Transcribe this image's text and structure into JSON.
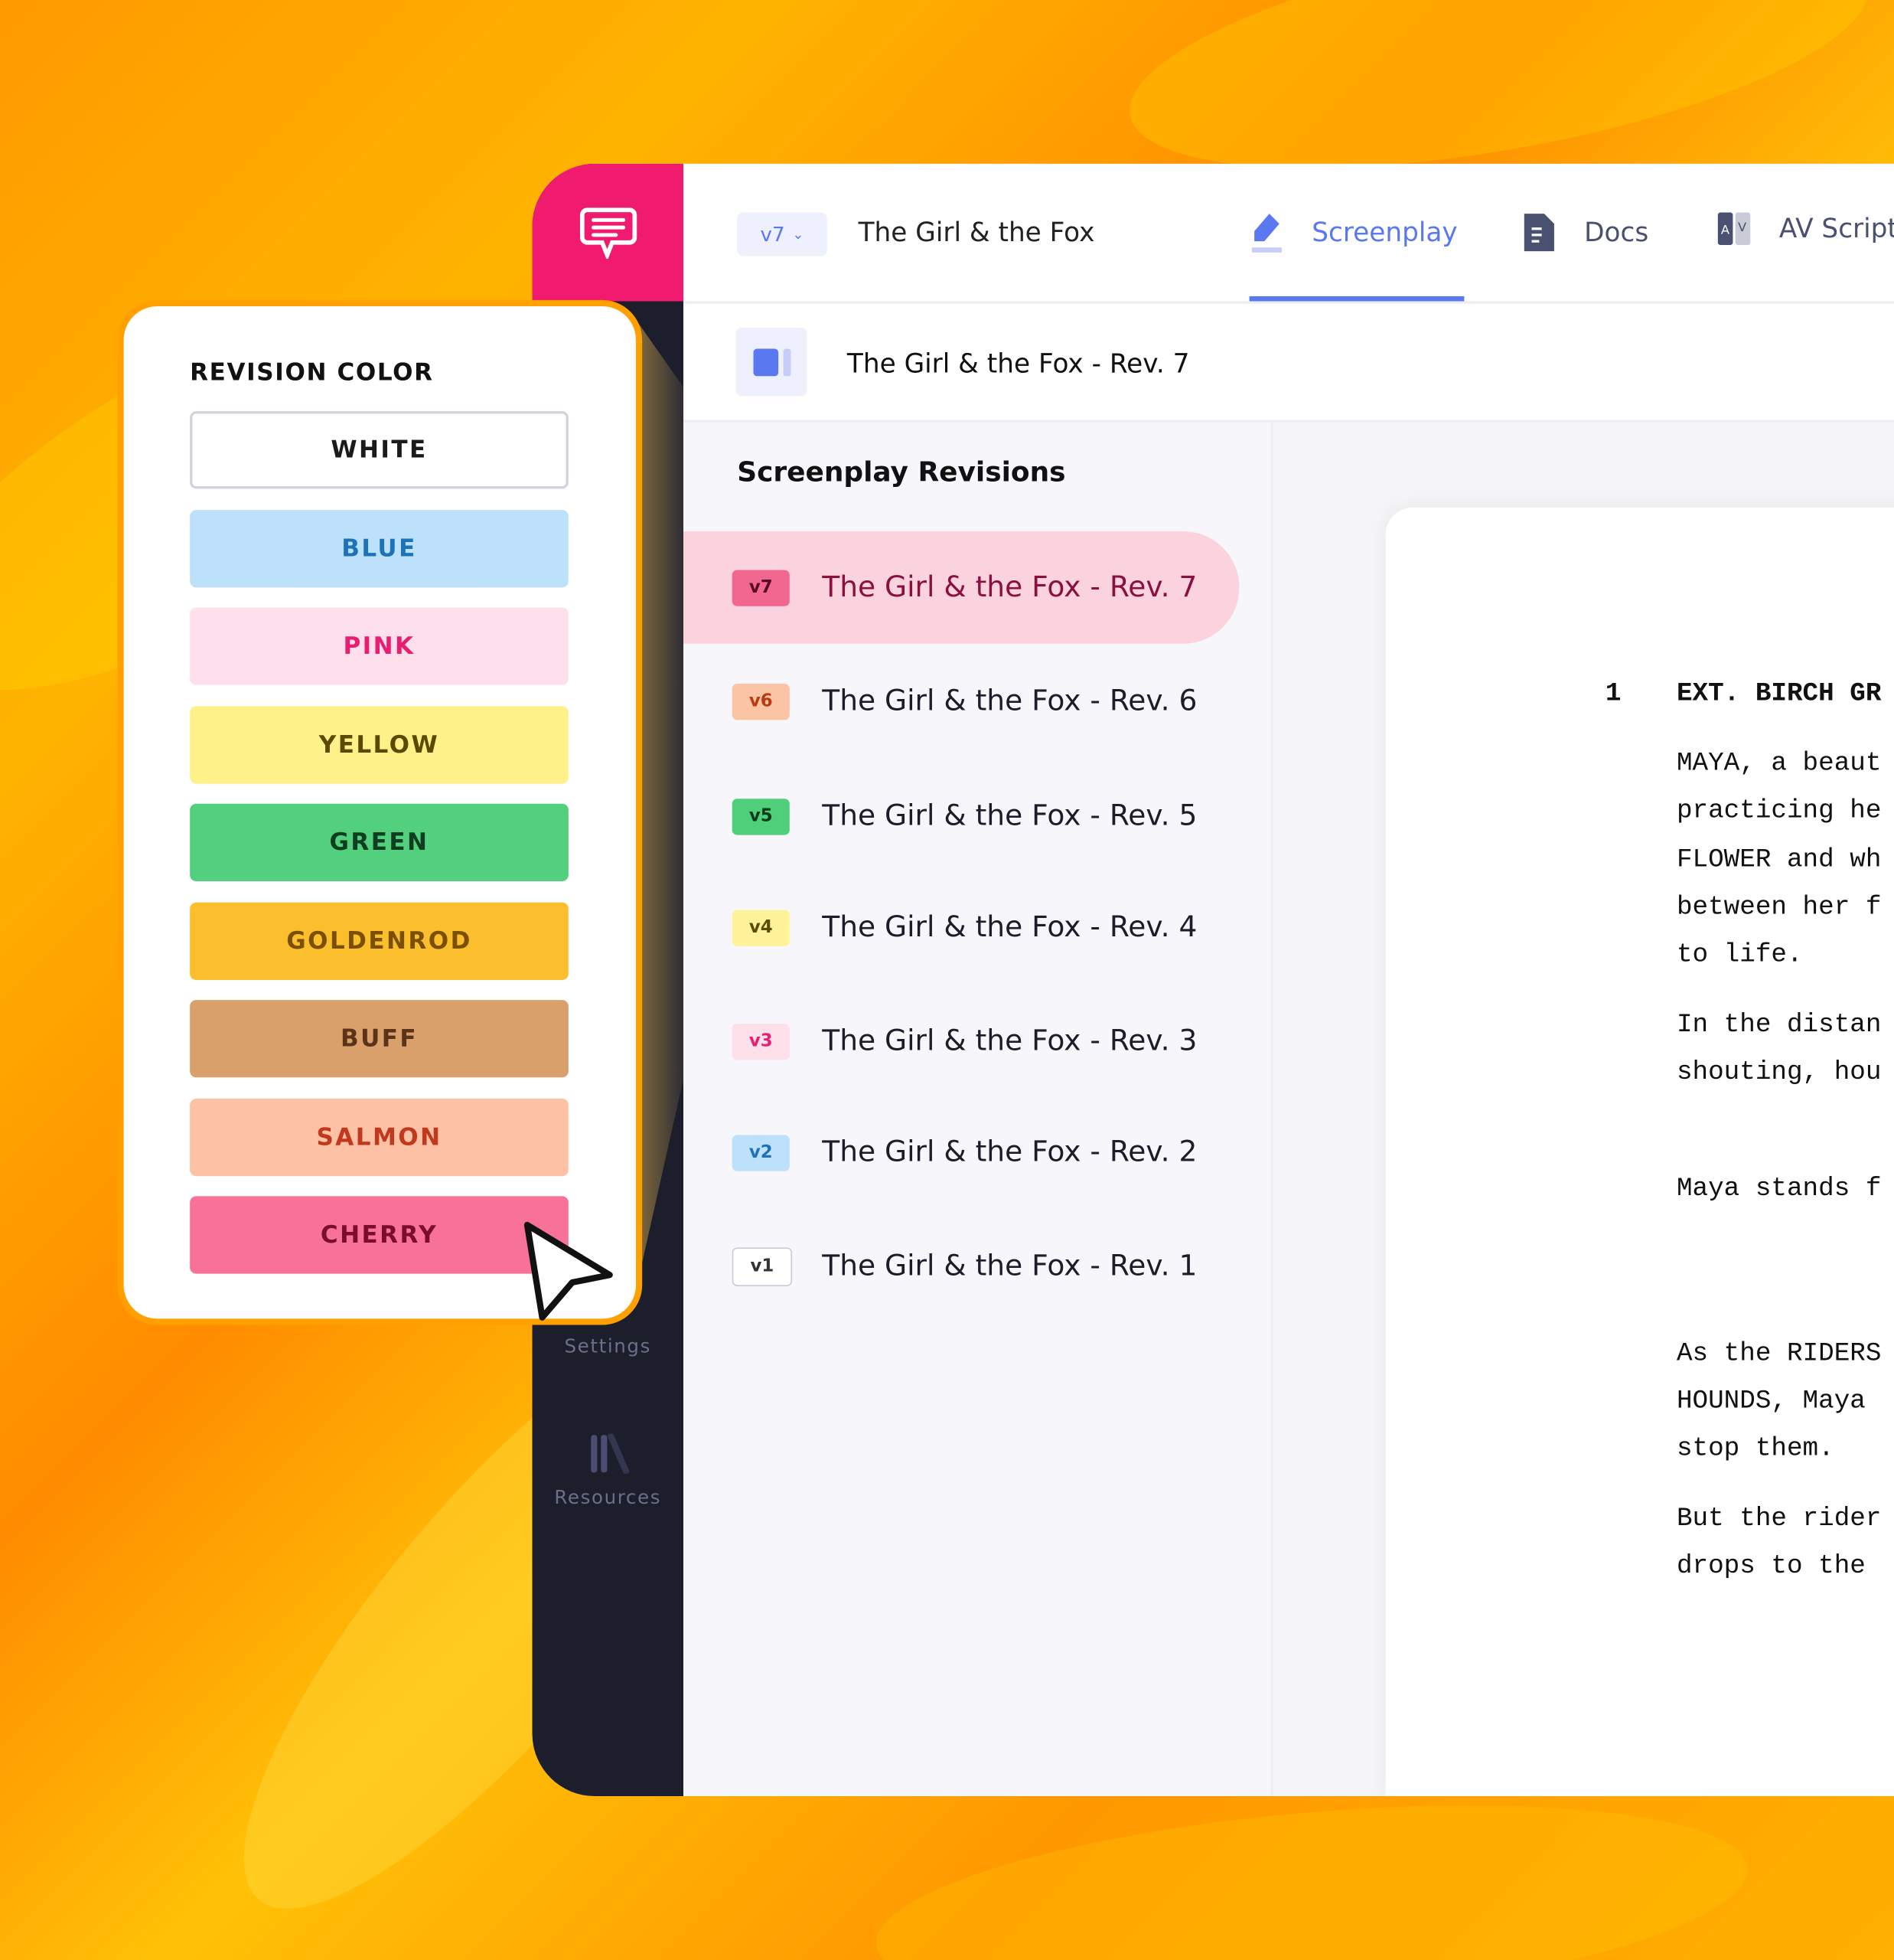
{
  "header": {
    "version": "v7",
    "title": "The Girl & the Fox",
    "tabs": [
      {
        "label": "Screenplay",
        "icon": "pen-icon",
        "active": true
      },
      {
        "label": "Docs",
        "icon": "document-icon",
        "active": false
      },
      {
        "label": "AV Script",
        "icon": "av-script-icon",
        "active": false
      }
    ]
  },
  "subheader": {
    "title": "The Girl & the Fox - Rev. 7"
  },
  "sidebar": {
    "items": [
      {
        "label": "Settings"
      },
      {
        "label": "Resources",
        "icon": "books-icon"
      }
    ]
  },
  "revisions": {
    "heading": "Screenplay Revisions",
    "items": [
      {
        "badge": "v7",
        "label": "The Girl & the Fox - Rev. 7",
        "bg": "#f2678f",
        "fg": "#5a0a25",
        "selected": true
      },
      {
        "badge": "v6",
        "label": "The Girl & the Fox - Rev. 6",
        "bg": "#fbc4a5",
        "fg": "#b63c12"
      },
      {
        "badge": "v5",
        "label": "The Girl & the Fox - Rev. 5",
        "bg": "#4fcf7a",
        "fg": "#0d3a1b"
      },
      {
        "badge": "v4",
        "label": "The Girl & the Fox - Rev. 4",
        "bg": "#fff39a",
        "fg": "#5a4b00"
      },
      {
        "badge": "v3",
        "label": "The Girl & the Fox - Rev. 3",
        "bg": "#fde0ea",
        "fg": "#e91e72"
      },
      {
        "badge": "v2",
        "label": "The Girl & the Fox - Rev. 2",
        "bg": "#bde0fb",
        "fg": "#1d73b8"
      },
      {
        "badge": "v1",
        "label": "The Girl & the Fox - Rev. 1",
        "bg": "#ffffff",
        "fg": "#333333"
      }
    ]
  },
  "script": {
    "scene_number": "1",
    "lines": [
      {
        "text": "EXT. BIRCH GR",
        "bold": true
      },
      {
        "text": "MAYA, a beaut"
      },
      {
        "text": "practicing he"
      },
      {
        "text": "FLOWER and wh"
      },
      {
        "text": "between her f"
      },
      {
        "text": "to life."
      },
      {
        "text": "In the distan"
      },
      {
        "text": "shouting, hou"
      },
      {
        "text": "Maya stands f"
      },
      {
        "text": "As the RIDERS"
      },
      {
        "text": "HOUNDS, Maya"
      },
      {
        "text": "stop them."
      },
      {
        "text": "But the rider"
      },
      {
        "text": "drops to the"
      }
    ]
  },
  "revision_color": {
    "title": "REVISION COLOR",
    "options": [
      {
        "label": "WHITE",
        "bg": "#ffffff",
        "fg": "#1a1a1a"
      },
      {
        "label": "BLUE",
        "bg": "#bde0fb",
        "fg": "#1d73b8"
      },
      {
        "label": "PINK",
        "bg": "#fde0ec",
        "fg": "#e91e72"
      },
      {
        "label": "YELLOW",
        "bg": "#fff18a",
        "fg": "#5a4a00"
      },
      {
        "label": "GREEN",
        "bg": "#52d07d",
        "fg": "#0f3d1f"
      },
      {
        "label": "GOLDENROD",
        "bg": "#fbbf2e",
        "fg": "#7a4f00"
      },
      {
        "label": "BUFF",
        "bg": "#d9a06c",
        "fg": "#5a3418"
      },
      {
        "label": "SALMON",
        "bg": "#fdc1a5",
        "fg": "#c0391c"
      },
      {
        "label": "CHERRY",
        "bg": "#f87199",
        "fg": "#7a0c2d"
      }
    ]
  },
  "colors": {
    "accent": "#5a78f0",
    "brand": "#f01a6e",
    "rail": "#1c1e2b",
    "popover_border": "#ffa000"
  }
}
